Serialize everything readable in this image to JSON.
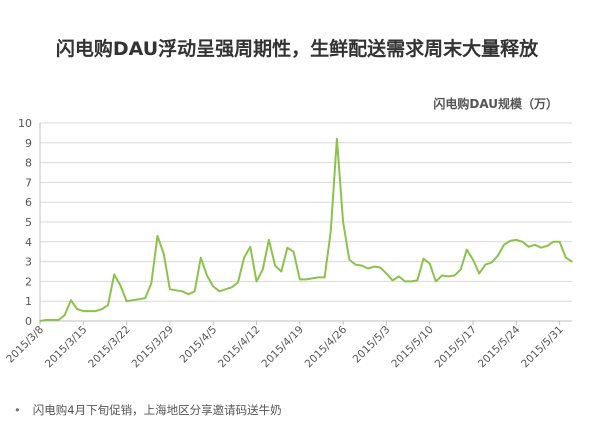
{
  "title": "闪电购DAU浮动呈强周期性，生鲜配送需求周末大量释放",
  "unit_label": "闪电购DAU规模（万）",
  "footnote": "闪电购4月下旬促销，上海地区分享邀请码送牛奶",
  "footnote_bullet": "•",
  "colors": {
    "line": "#8bc34a",
    "axis": "#bfbfbf",
    "grid": "#d9d9d9",
    "text": "#555555"
  },
  "chart_data": {
    "type": "line",
    "title": "闪电购DAU浮动呈强周期性，生鲜配送需求周末大量释放",
    "ylabel": "闪电购DAU规模（万）",
    "xlabel": "",
    "ylim": [
      0,
      10
    ],
    "yticks": [
      0,
      1,
      2,
      3,
      4,
      5,
      6,
      7,
      8,
      9,
      10
    ],
    "grid": "horizontal",
    "legend": "none",
    "x_tick_labels": [
      "2015/3/8",
      "2015/3/15",
      "2015/3/22",
      "2015/3/29",
      "2015/4/5",
      "2015/4/12",
      "2015/4/19",
      "2015/4/26",
      "2015/5/3",
      "2015/5/10",
      "2015/5/17",
      "2015/5/24",
      "2015/5/31"
    ],
    "x_start": "2015/3/8",
    "x_end": "2015/5/31",
    "series": [
      {
        "values": [
          0.0,
          0.05,
          0.05,
          0.05,
          0.3,
          1.05,
          0.6,
          0.5,
          0.5,
          0.5,
          0.6,
          0.8,
          2.35,
          1.8,
          1.0,
          1.05,
          1.1,
          1.15,
          1.9,
          4.3,
          3.4,
          1.6,
          1.55,
          1.5,
          1.35,
          1.5,
          3.2,
          2.3,
          1.75,
          1.5,
          1.6,
          1.7,
          1.95,
          3.2,
          3.75,
          2.0,
          2.6,
          4.1,
          2.8,
          2.5,
          3.7,
          3.5,
          2.1,
          2.1,
          2.15,
          2.2,
          2.2,
          4.5,
          9.2,
          5.0,
          3.1,
          2.85,
          2.8,
          2.65,
          2.75,
          2.7,
          2.4,
          2.05,
          2.25,
          2.0,
          2.0,
          2.05,
          3.15,
          2.9,
          2.0,
          2.3,
          2.25,
          2.3,
          2.6,
          3.6,
          3.1,
          2.4,
          2.85,
          2.95,
          3.3,
          3.85,
          4.05,
          4.1,
          4.0,
          3.75,
          3.85,
          3.7,
          3.8,
          4.0,
          4.0,
          3.2,
          3.0
        ]
      }
    ]
  }
}
